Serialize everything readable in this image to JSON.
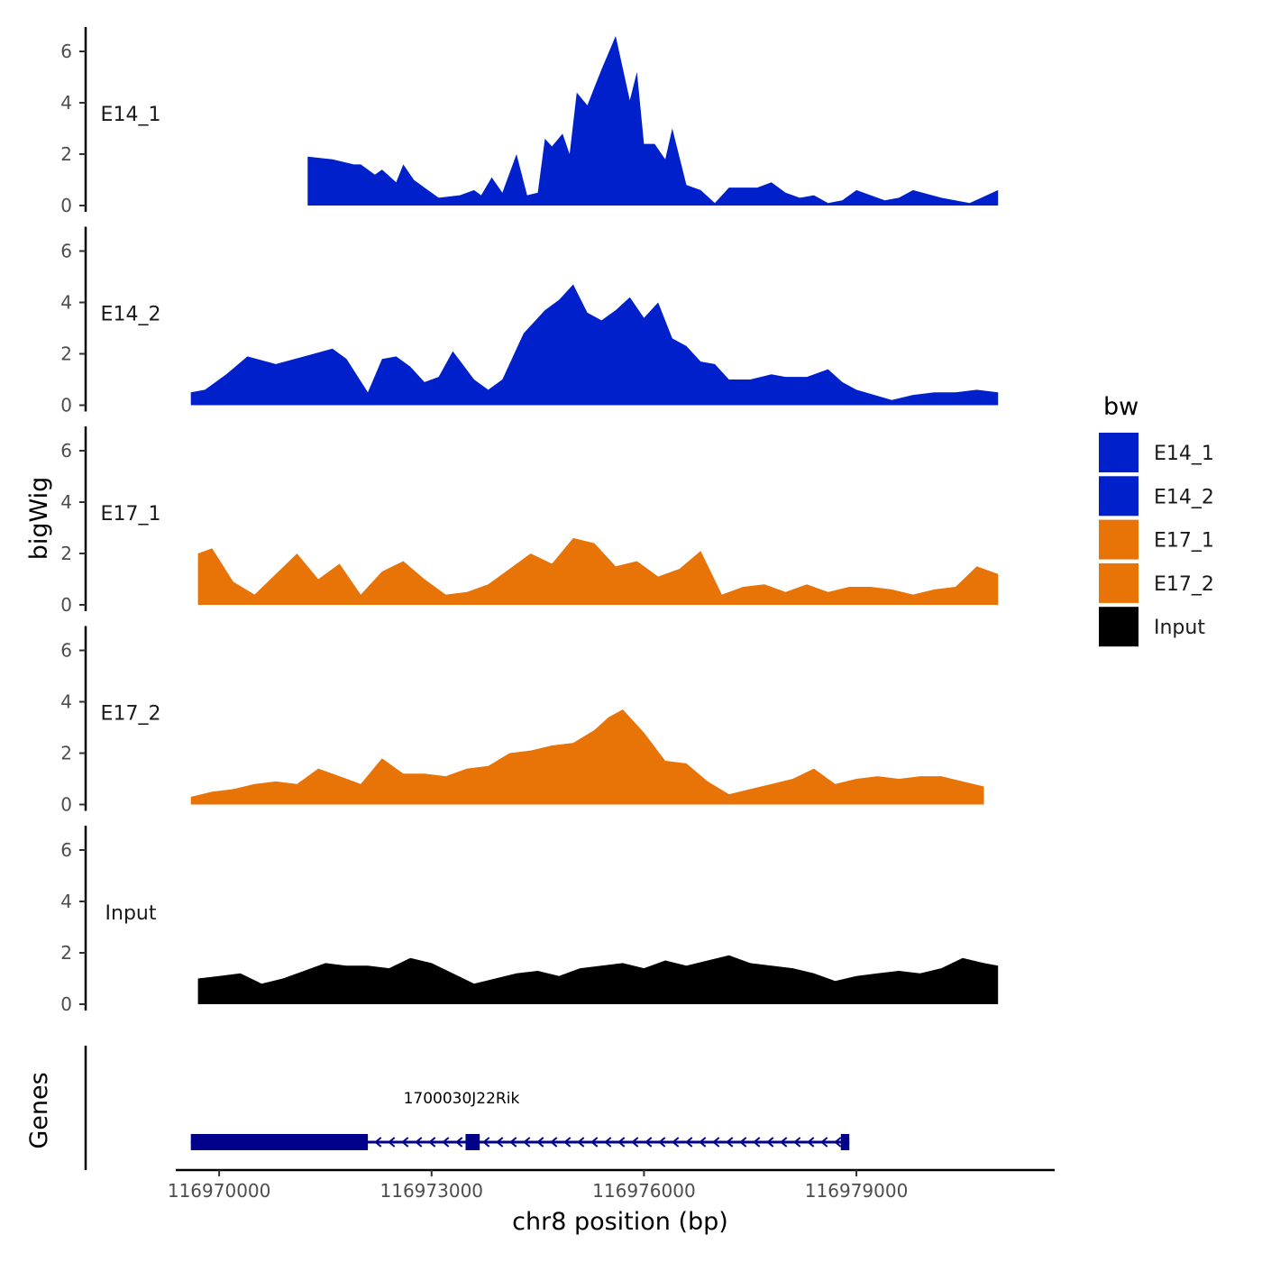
{
  "chart_data": {
    "type": "area",
    "chromosome": "chr8",
    "xlabel": "chr8 position (bp)",
    "ylabel": "bigWig",
    "genes_label": "Genes",
    "xlim": [
      116969400,
      116981800
    ],
    "x_ticks": [
      116970000,
      116973000,
      116976000,
      116979000
    ],
    "x_tick_labels": [
      "116970000",
      "116973000",
      "116976000",
      "116979000"
    ],
    "ylim": [
      0,
      7
    ],
    "y_ticks": [
      0,
      2,
      4,
      6
    ],
    "y_tick_labels": [
      "0",
      "2",
      "4",
      "6"
    ],
    "legend": {
      "title": "bw",
      "entries": [
        {
          "label": "E14_1",
          "color": "#0020CC"
        },
        {
          "label": "E14_2",
          "color": "#0020CC"
        },
        {
          "label": "E17_1",
          "color": "#E87306"
        },
        {
          "label": "E17_2",
          "color": "#E87306"
        },
        {
          "label": "Input",
          "color": "#000000"
        }
      ]
    },
    "series": [
      {
        "name": "E14_1",
        "color": "#0020CC",
        "x": [
          116971250,
          116971600,
          116971900,
          116972000,
          116972200,
          116972300,
          116972500,
          116972600,
          116972750,
          116972900,
          116973000,
          116973100,
          116973400,
          116973600,
          116973700,
          116973850,
          116974000,
          116974200,
          116974350,
          116974500,
          116974600,
          116974700,
          116974850,
          116974950,
          116975050,
          116975200,
          116975300,
          116975400,
          116975600,
          116975800,
          116975900,
          116976000,
          116976150,
          116976300,
          116976400,
          116976600,
          116976800,
          116977000,
          116977200,
          116977600,
          116977800,
          116978000,
          116978200,
          116978400,
          116978600,
          116978800,
          116979000,
          116979400,
          116979600,
          116979800,
          116980200,
          116980600,
          116981000
        ],
        "y": [
          1.9,
          1.8,
          1.6,
          1.6,
          1.2,
          1.4,
          0.9,
          1.6,
          1.0,
          0.7,
          0.5,
          0.3,
          0.4,
          0.6,
          0.4,
          1.1,
          0.5,
          2.0,
          0.4,
          0.5,
          2.6,
          2.3,
          2.8,
          2.0,
          4.4,
          3.9,
          4.6,
          5.3,
          6.6,
          4.1,
          5.2,
          2.4,
          2.4,
          1.8,
          3.0,
          0.8,
          0.6,
          0.1,
          0.7,
          0.7,
          0.9,
          0.5,
          0.3,
          0.4,
          0.1,
          0.2,
          0.6,
          0.2,
          0.3,
          0.6,
          0.3,
          0.1,
          0.6
        ]
      },
      {
        "name": "E14_2",
        "color": "#0020CC",
        "x": [
          116969600,
          116969800,
          116970100,
          116970400,
          116970800,
          116971200,
          116971600,
          116971800,
          116972100,
          116972300,
          116972500,
          116972700,
          116972900,
          116973100,
          116973300,
          116973600,
          116973800,
          116974000,
          116974300,
          116974600,
          116974800,
          116975000,
          116975200,
          116975400,
          116975600,
          116975800,
          116976000,
          116976200,
          116976400,
          116976600,
          116976800,
          116977000,
          116977200,
          116977500,
          116977800,
          116978000,
          116978300,
          116978600,
          116978800,
          116979000,
          116979500,
          116979800,
          116980100,
          116980400,
          116980700,
          116981000
        ],
        "y": [
          0.5,
          0.6,
          1.2,
          1.9,
          1.6,
          1.9,
          2.2,
          1.8,
          0.5,
          1.8,
          1.9,
          1.5,
          0.9,
          1.1,
          2.1,
          1.0,
          0.6,
          1.0,
          2.8,
          3.7,
          4.1,
          4.7,
          3.6,
          3.3,
          3.7,
          4.2,
          3.4,
          4.0,
          2.6,
          2.3,
          1.7,
          1.6,
          1.0,
          1.0,
          1.2,
          1.1,
          1.1,
          1.4,
          0.9,
          0.6,
          0.2,
          0.4,
          0.5,
          0.5,
          0.6,
          0.5
        ]
      },
      {
        "name": "E17_1",
        "color": "#E87306",
        "x": [
          116969700,
          116969900,
          116970200,
          116970500,
          116970800,
          116971100,
          116971400,
          116971700,
          116972000,
          116972300,
          116972600,
          116972900,
          116973200,
          116973500,
          116973800,
          116974100,
          116974400,
          116974700,
          116975000,
          116975300,
          116975600,
          116975900,
          116976200,
          116976500,
          116976800,
          116977100,
          116977400,
          116977700,
          116978000,
          116978300,
          116978600,
          116978900,
          116979200,
          116979500,
          116979800,
          116980100,
          116980400,
          116980700,
          116981000
        ],
        "y": [
          2.0,
          2.2,
          0.9,
          0.4,
          1.2,
          2.0,
          1.0,
          1.6,
          0.4,
          1.3,
          1.7,
          1.0,
          0.4,
          0.5,
          0.8,
          1.4,
          2.0,
          1.6,
          2.6,
          2.4,
          1.5,
          1.7,
          1.1,
          1.4,
          2.1,
          0.4,
          0.7,
          0.8,
          0.5,
          0.8,
          0.5,
          0.7,
          0.7,
          0.6,
          0.4,
          0.6,
          0.7,
          1.5,
          1.2
        ]
      },
      {
        "name": "E17_2",
        "color": "#E87306",
        "x": [
          116969600,
          116969900,
          116970200,
          116970500,
          116970800,
          116971100,
          116971400,
          116971700,
          116972000,
          116972300,
          116972600,
          116972900,
          116973200,
          116973500,
          116973800,
          116974100,
          116974400,
          116974700,
          116975000,
          116975300,
          116975500,
          116975700,
          116976000,
          116976300,
          116976600,
          116976900,
          116977200,
          116977500,
          116977800,
          116978100,
          116978400,
          116978700,
          116979000,
          116979300,
          116979600,
          116979900,
          116980200,
          116980500,
          116980800
        ],
        "y": [
          0.3,
          0.5,
          0.6,
          0.8,
          0.9,
          0.8,
          1.4,
          1.1,
          0.8,
          1.8,
          1.2,
          1.2,
          1.1,
          1.4,
          1.5,
          2.0,
          2.1,
          2.3,
          2.4,
          2.9,
          3.4,
          3.7,
          2.8,
          1.7,
          1.6,
          0.9,
          0.4,
          0.6,
          0.8,
          1.0,
          1.4,
          0.8,
          1.0,
          1.1,
          1.0,
          1.1,
          1.1,
          0.9,
          0.7
        ]
      },
      {
        "name": "Input",
        "color": "#000000",
        "x": [
          116969700,
          116970000,
          116970300,
          116970600,
          116970900,
          116971200,
          116971500,
          116971800,
          116972100,
          116972400,
          116972700,
          116973000,
          116973300,
          116973600,
          116973900,
          116974200,
          116974500,
          116974800,
          116975100,
          116975400,
          116975700,
          116976000,
          116976300,
          116976600,
          116976900,
          116977200,
          116977500,
          116977800,
          116978100,
          116978400,
          116978700,
          116979000,
          116979300,
          116979600,
          116979900,
          116980200,
          116980500,
          116980800,
          116981000
        ],
        "y": [
          1.0,
          1.1,
          1.2,
          0.8,
          1.0,
          1.3,
          1.6,
          1.5,
          1.5,
          1.4,
          1.8,
          1.6,
          1.2,
          0.8,
          1.0,
          1.2,
          1.3,
          1.1,
          1.4,
          1.5,
          1.6,
          1.4,
          1.7,
          1.5,
          1.7,
          1.9,
          1.6,
          1.5,
          1.4,
          1.2,
          0.9,
          1.1,
          1.2,
          1.3,
          1.2,
          1.4,
          1.8,
          1.6,
          1.5
        ]
      }
    ],
    "genes": [
      {
        "name": "1700030J22Rik",
        "strand": "-",
        "start": 116969600,
        "end": 116978900,
        "exons": [
          [
            116969600,
            116972100
          ],
          [
            116973480,
            116973680
          ],
          [
            116978780,
            116978900
          ]
        ]
      }
    ]
  }
}
